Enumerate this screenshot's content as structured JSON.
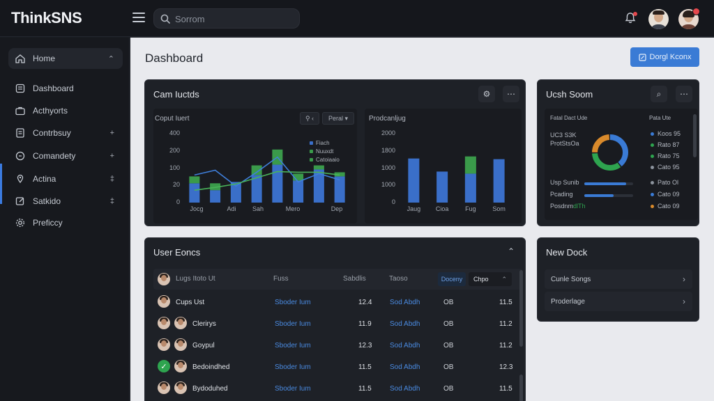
{
  "app": {
    "name": "ThinkSNS"
  },
  "search": {
    "placeholder": "Sorrom"
  },
  "sidebar": {
    "items": [
      {
        "label": "Home",
        "icon": "home-icon",
        "chevron": "⌃"
      },
      {
        "label": "Dashboard",
        "icon": "dashboard-icon",
        "chevron": ""
      },
      {
        "label": "Acthyorts",
        "icon": "briefcase-icon",
        "chevron": ""
      },
      {
        "label": "Contrbsuy",
        "icon": "document-icon",
        "chevron": "+"
      },
      {
        "label": "Comandety",
        "icon": "chat-icon",
        "chevron": "+"
      },
      {
        "label": "Actina",
        "icon": "settings-icon",
        "chevron": "‡"
      },
      {
        "label": "Satkido",
        "icon": "edit-icon",
        "chevron": "‡"
      },
      {
        "label": "Preficcy",
        "icon": "gear-icon",
        "chevron": ""
      }
    ]
  },
  "page": {
    "title": "Dashboard",
    "cta_label": "Dorgl Kconx"
  },
  "cam_card": {
    "title": "Cam Iuctds",
    "left": {
      "title": "Coput Iuert",
      "filter_label": "Peral",
      "legend": [
        "Fiach",
        "Nuuxdt",
        "Catoiaaio"
      ],
      "chart_data": {
        "type": "bar",
        "yticks": [
          "400",
          "200",
          "100",
          "20",
          "0"
        ],
        "xticks": [
          "Jocg",
          "Adi",
          "Sah",
          "Mero",
          "Dep"
        ],
        "bars": [
          {
            "blue": 28,
            "green": 10
          },
          {
            "blue": 18,
            "green": 10
          },
          {
            "blue": 30,
            "green": 0
          },
          {
            "blue": 40,
            "green": 14
          },
          {
            "blue": 55,
            "green": 22
          },
          {
            "blue": 32,
            "green": 10
          },
          {
            "blue": 48,
            "green": 6
          },
          {
            "blue": 38,
            "green": 6
          }
        ],
        "line_blue": [
          40,
          47,
          24,
          44,
          66,
          30,
          42,
          33
        ],
        "line_green": [
          18,
          22,
          27,
          36,
          45,
          44,
          44,
          40
        ],
        "colors": {
          "blue": "#3a6fc9",
          "green": "#3a9a4a"
        }
      }
    },
    "right": {
      "title": "Prodcanljug",
      "chart_data": {
        "type": "bar",
        "yticks": [
          "2000",
          "1800",
          "1000",
          "1000",
          "0"
        ],
        "xticks": [
          "Jaug",
          "Cioa",
          "Fug",
          "Som"
        ],
        "bars": [
          {
            "blue": 64,
            "green": 0
          },
          {
            "blue": 45,
            "green": 0
          },
          {
            "blue": 42,
            "green": 25
          },
          {
            "blue": 63,
            "green": 0
          }
        ]
      }
    }
  },
  "usage_card": {
    "title": "Ucsh Soom",
    "col1": "Fatal Dact Ude",
    "col2": "Pata Ute",
    "donut_label_1": "UC3 S3K",
    "donut_label_2": "ProtStsOa",
    "donut_data": {
      "segments": [
        {
          "value": 40,
          "color": "#3a7bd5"
        },
        {
          "value": 35,
          "color": "#2ea44f"
        },
        {
          "value": 25,
          "color": "#d98a2b"
        }
      ]
    },
    "legend_top": [
      {
        "label": "Koos 95",
        "color": "#3a7bd5"
      },
      {
        "label": "Rato 87",
        "color": "#2ea44f"
      },
      {
        "label": "Rato 75",
        "color": "#2ea44f"
      },
      {
        "label": "Cato 95",
        "color": "#8c939d"
      }
    ],
    "progress": [
      {
        "label": "Usp Sunib",
        "value": 0.85,
        "color": "#3a7bd5",
        "right": "Pato Ol",
        "dot": "#8c939d"
      },
      {
        "label": "Pcading",
        "value": 0.6,
        "color": "#3a7bd5",
        "right": "Cato 09",
        "dot": "#3a7bd5"
      },
      {
        "label": "Posdnm",
        "label_suffix": "dlTh",
        "value": 0.0,
        "color": "#2ea44f",
        "right": "Cato 09",
        "dot": "#d98a2b"
      }
    ]
  },
  "users_card": {
    "title": "User Eoncs",
    "header": {
      "name": "Lugs Itoto Ut",
      "col2": "Fuss",
      "col3": "Sabdlis",
      "col4": "Taoso",
      "btn1": "Doceny",
      "btn2": "Chpo"
    },
    "rows": [
      {
        "name": "Cups Ust",
        "link1": "Sboder Ium",
        "num1": "12.4",
        "link2": "Sod Abdh",
        "tag": "OB",
        "num2": "11.5",
        "avatars": 1
      },
      {
        "name": "Clerirys",
        "link1": "Sboder Ium",
        "num1": "11.9",
        "link2": "Sod Abdh",
        "tag": "OB",
        "num2": "11.2",
        "avatars": 2
      },
      {
        "name": "Goypul",
        "link1": "Sboder Ium",
        "num1": "12.3",
        "link2": "Sod Abdh",
        "tag": "OB",
        "num2": "11.2",
        "avatars": 2
      },
      {
        "name": "Bedoindhed",
        "link1": "Sboder Ium",
        "num1": "11.5",
        "link2": "Sod Abdh",
        "tag": "OB",
        "num2": "12.3",
        "avatars": 2,
        "check": true
      },
      {
        "name": "Bydoduhed",
        "link1": "Sboder Ium",
        "num1": "11.5",
        "link2": "Sod Abdh",
        "tag": "OB",
        "num2": "11.5",
        "avatars": 2
      }
    ]
  },
  "dock_card": {
    "title": "New Dock",
    "rows": [
      "Cunle Songs",
      "Proderlage"
    ]
  }
}
